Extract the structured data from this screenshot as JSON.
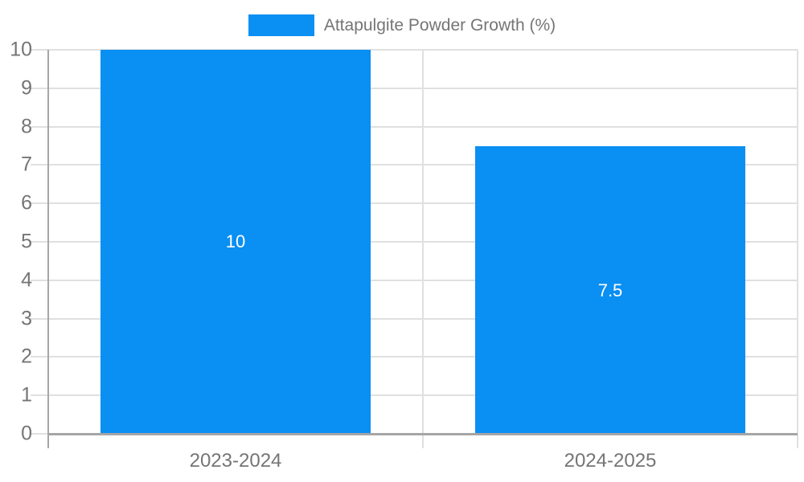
{
  "chart_data": {
    "type": "bar",
    "title": "",
    "legend": {
      "label": "Attapulgite Powder Growth (%)",
      "position": "top-center"
    },
    "categories": [
      "2023-2024",
      "2024-2025"
    ],
    "series": [
      {
        "name": "Attapulgite Powder Growth (%)",
        "values": [
          10,
          7.5
        ]
      }
    ],
    "value_labels": [
      "10",
      "7.5"
    ],
    "xlabel": "",
    "ylabel": "",
    "ylim": [
      0,
      10
    ],
    "yticks": [
      0,
      1,
      2,
      3,
      4,
      5,
      6,
      7,
      8,
      9,
      10
    ],
    "grid": true,
    "colors": {
      "bar": "#0a8ff2",
      "grid": "#e0e0e0",
      "axis": "#a6a6a6",
      "text": "#757575",
      "bar_label": "#ffffff"
    }
  }
}
